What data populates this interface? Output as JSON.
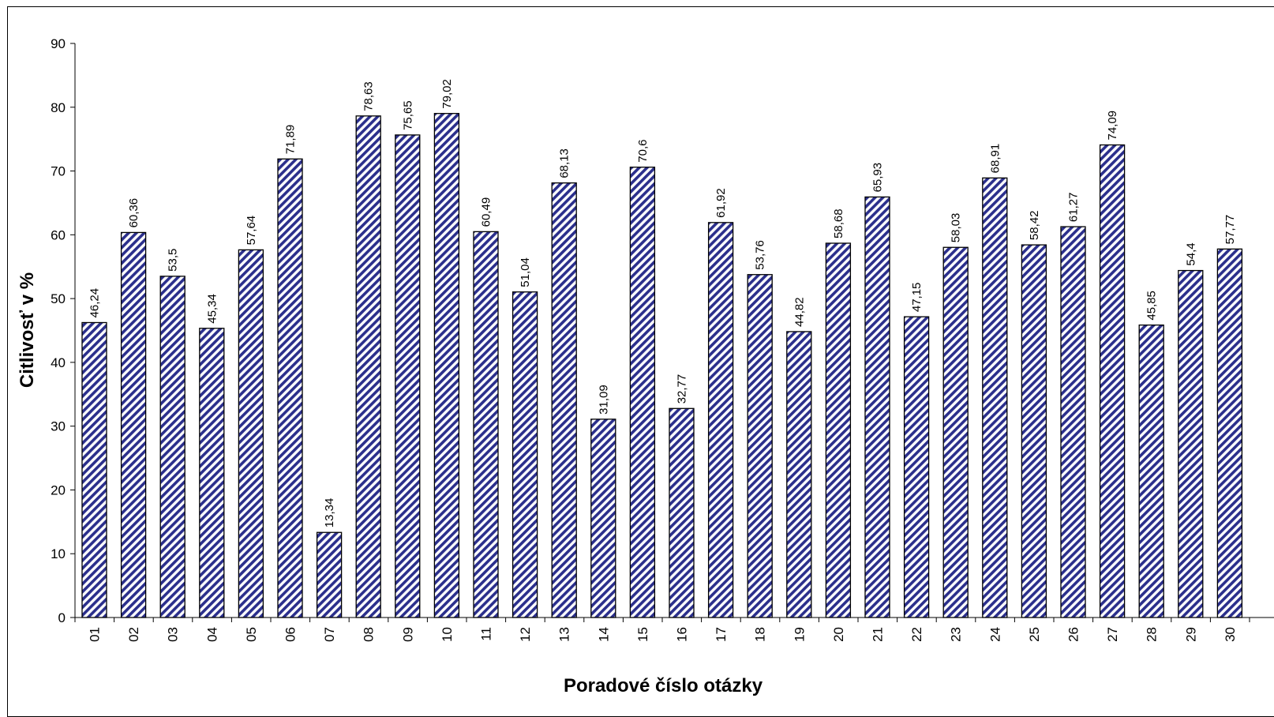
{
  "chart_data": {
    "type": "bar",
    "title": "",
    "xlabel": "Poradové číslo otázky",
    "ylabel": "Citlivosť v %",
    "ylim": [
      0,
      90
    ],
    "yticks": [
      0,
      10,
      20,
      30,
      40,
      50,
      60,
      70,
      80,
      90
    ],
    "grid": false,
    "legend": "none",
    "categories": [
      "01",
      "02",
      "03",
      "04",
      "05",
      "06",
      "07",
      "08",
      "09",
      "10",
      "11",
      "12",
      "13",
      "14",
      "15",
      "16",
      "17",
      "18",
      "19",
      "20",
      "21",
      "22",
      "23",
      "24",
      "25",
      "26",
      "27",
      "28",
      "29",
      "30"
    ],
    "values": [
      46.24,
      60.36,
      53.5,
      45.34,
      57.64,
      71.89,
      13.34,
      78.63,
      75.65,
      79.02,
      60.49,
      51.04,
      68.13,
      31.09,
      70.6,
      32.77,
      61.92,
      53.76,
      44.82,
      58.68,
      65.93,
      47.15,
      58.03,
      68.91,
      58.42,
      61.27,
      74.09,
      45.85,
      54.4,
      57.77
    ],
    "value_labels": [
      "46,24",
      "60,36",
      "53,5",
      "45,34",
      "57,64",
      "71,89",
      "13,34",
      "78,63",
      "75,65",
      "79,02",
      "60,49",
      "51,04",
      "68,13",
      "31,09",
      "70,6",
      "32,77",
      "61,92",
      "53,76",
      "44,82",
      "58,68",
      "65,93",
      "47,15",
      "58,03",
      "68,91",
      "58,42",
      "61,27",
      "74,09",
      "45,85",
      "54,4",
      "57,77"
    ],
    "bar_fill": "diagonal hatch",
    "colors": {
      "hatch": "#2b2f8c",
      "bar_background": "#ffffff",
      "outline": "#000000"
    }
  }
}
